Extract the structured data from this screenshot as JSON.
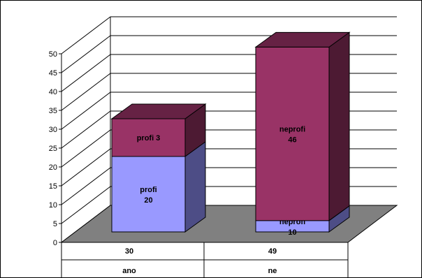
{
  "chart_data": {
    "type": "bar",
    "stacked": true,
    "three_d": true,
    "categories": [
      "ano",
      "ne"
    ],
    "category_totals": [
      "30",
      "49"
    ],
    "series": [
      {
        "name": "profi",
        "values": [
          20,
          3
        ],
        "color": "#9999ff",
        "side_color": "#4d4d86",
        "top_color": "#7373cc"
      },
      {
        "name": "neprofi",
        "values": [
          10,
          46
        ],
        "color": "#993366",
        "side_color": "#4d1a33",
        "top_color": "#662244"
      }
    ],
    "segment_labels": [
      {
        "series": "profi",
        "text_name": "profi",
        "text_value": "20"
      },
      {
        "series": "profi",
        "text_name": "profi 3",
        "text_value": ""
      },
      {
        "series": "neprofi",
        "text_name": "neprofi",
        "text_value": "10"
      },
      {
        "series": "neprofi",
        "text_name": "neprofi",
        "text_value": "46"
      }
    ],
    "ylim": [
      0,
      50
    ],
    "yticks": [
      "0",
      "5",
      "10",
      "15",
      "20",
      "25",
      "30",
      "35",
      "40",
      "45",
      "50"
    ],
    "grid": true,
    "floor_color": "#808080",
    "title": "",
    "xlabel": "",
    "ylabel": ""
  }
}
